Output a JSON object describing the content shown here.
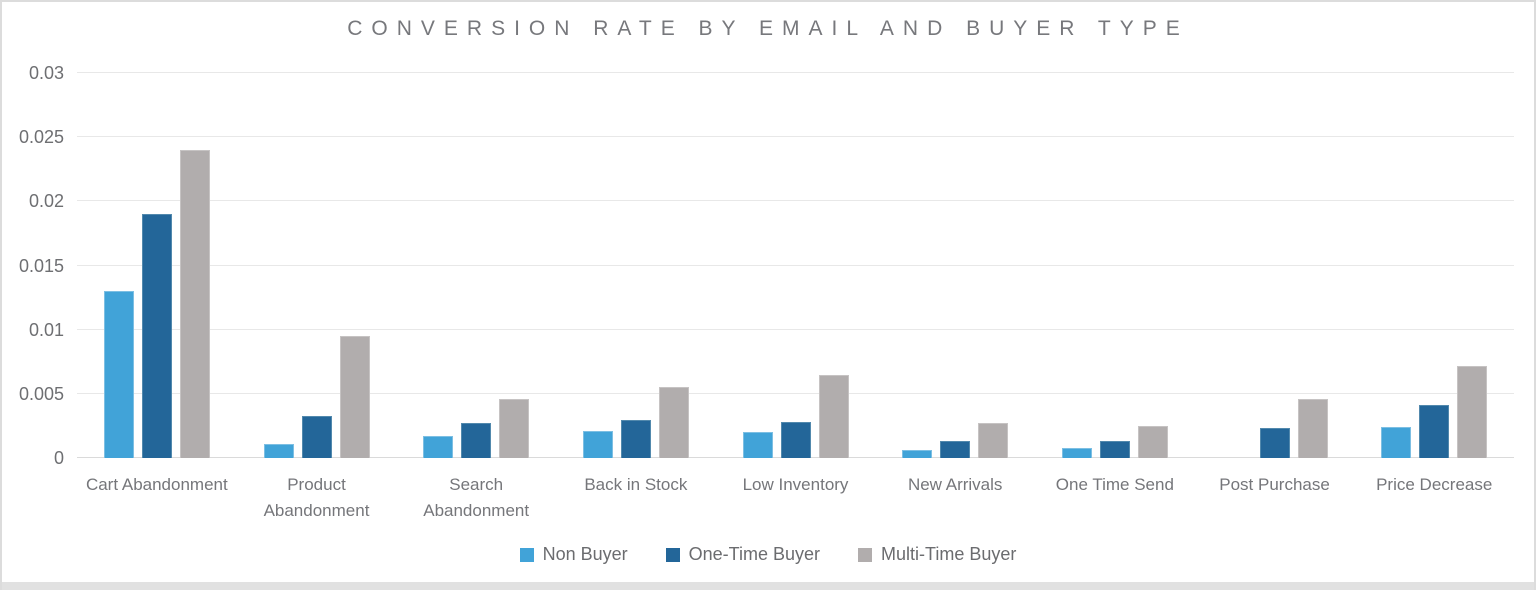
{
  "chart_data": {
    "type": "bar",
    "title": "CONVERSION RATE BY EMAIL AND BUYER TYPE",
    "categories": [
      "Cart Abandonment",
      "Product Abandonment",
      "Search Abandonment",
      "Back in Stock",
      "Low Inventory",
      "New Arrivals",
      "One Time Send",
      "Post Purchase",
      "Price Decrease"
    ],
    "series": [
      {
        "name": "Non Buyer",
        "color": "#41a3d8",
        "border_color": "#7dbfe3",
        "values": [
          0.013,
          0.0011,
          0.0017,
          0.0021,
          0.002,
          0.0006,
          0.0008,
          0,
          0.0024
        ]
      },
      {
        "name": "One-Time Buyer",
        "color": "#236699",
        "border_color": "#5289ad",
        "values": [
          0.019,
          0.0033,
          0.0027,
          0.003,
          0.0028,
          0.0013,
          0.0013,
          0.0023,
          0.0041
        ]
      },
      {
        "name": "Multi-Time Buyer",
        "color": "#b1adad",
        "border_color": "#c6c3c3",
        "values": [
          0.024,
          0.0095,
          0.0046,
          0.0055,
          0.0065,
          0.0027,
          0.0025,
          0.0046,
          0.0072
        ]
      }
    ],
    "xlabel": "",
    "ylabel": "",
    "ylim": [
      0,
      0.03
    ],
    "y_ticks": [
      0,
      0.005,
      0.01,
      0.015,
      0.02,
      0.025,
      0.03
    ],
    "y_tick_labels": [
      "0",
      "0.005",
      "0.01",
      "0.015",
      "0.02",
      "0.025",
      "0.03"
    ],
    "grid": true,
    "legend_position": "bottom"
  }
}
